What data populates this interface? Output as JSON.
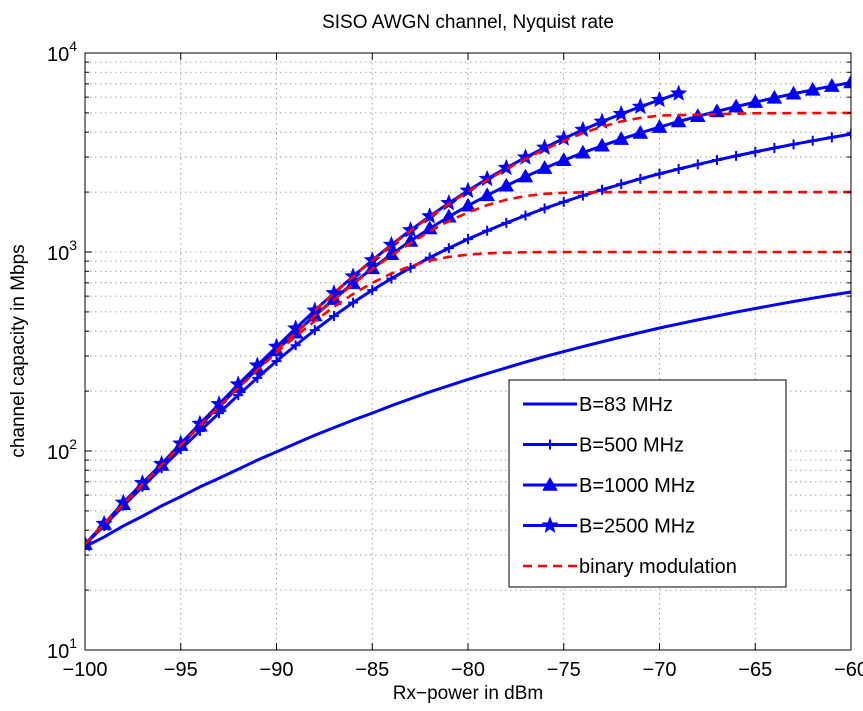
{
  "chart_data": {
    "type": "line",
    "title": "SISO AWGN channel, Nyquist rate",
    "xlabel": "Rx−power in dBm",
    "ylabel": "channel capacity in Mbps",
    "xlim": [
      -100,
      -60
    ],
    "ylim": [
      10,
      10000
    ],
    "y_scale": "log",
    "grid": true,
    "legend_position": "lower-right",
    "x_ticks": [
      -100,
      -95,
      -90,
      -85,
      -80,
      -75,
      -70,
      -65,
      -60
    ],
    "x_tick_labels": [
      "−100",
      "−95",
      "−90",
      "−85",
      "−80",
      "−75",
      "−70",
      "−65",
      "−60"
    ],
    "y_ticks": [
      {
        "value": 10,
        "base": "10",
        "exp": "1"
      },
      {
        "value": 100,
        "base": "10",
        "exp": "2"
      },
      {
        "value": 1000,
        "base": "10",
        "exp": "3"
      },
      {
        "value": 10000,
        "base": "10",
        "exp": "4"
      }
    ],
    "series": [
      {
        "name": "B=83 MHz",
        "color": "#0000ff",
        "style": "solid",
        "marker": "none",
        "x": [
          -100,
          -99,
          -98,
          -97,
          -96,
          -95,
          -94,
          -93,
          -92,
          -91,
          -90,
          -89,
          -88,
          -87,
          -86,
          -85,
          -84,
          -83,
          -82,
          -81,
          -80,
          -79,
          -78,
          -77,
          -76,
          -75,
          -74,
          -73,
          -72,
          -71,
          -70,
          -69,
          -68,
          -67,
          -66,
          -65,
          -64,
          -63,
          -62,
          -61,
          -60
        ],
        "y": [
          33,
          37,
          42,
          47,
          53,
          59,
          66,
          73,
          81,
          90,
          99,
          109,
          120,
          131,
          143,
          155,
          169,
          183,
          198,
          213,
          229,
          245,
          262,
          280,
          298,
          316,
          335,
          354,
          374,
          394,
          415,
          435,
          456,
          477,
          499,
          520,
          542,
          564,
          586,
          608,
          630
        ]
      },
      {
        "name": "B=500 MHz",
        "color": "#0000ff",
        "style": "solid",
        "marker": "plus",
        "x": [
          -100,
          -99,
          -98,
          -97,
          -96,
          -95,
          -94,
          -93,
          -92,
          -91,
          -90,
          -89,
          -88,
          -87,
          -86,
          -85,
          -84,
          -83,
          -82,
          -81,
          -80,
          -79,
          -78,
          -77,
          -76,
          -75,
          -74,
          -73,
          -72,
          -71,
          -70,
          -69,
          -68,
          -67,
          -66,
          -65,
          -64,
          -63,
          -62,
          -61,
          -60
        ],
        "y": [
          34,
          42,
          53,
          66,
          82,
          102,
          126,
          155,
          191,
          233,
          283,
          340,
          405,
          477,
          557,
          643,
          735,
          833,
          937,
          1046,
          1160,
          1278,
          1400,
          1526,
          1655,
          1786,
          1920,
          2056,
          2193,
          2332,
          2472,
          2613,
          2755,
          2898,
          3042,
          3186,
          3331,
          3476,
          3621,
          3767,
          3913
        ]
      },
      {
        "name": "B=1000 MHz",
        "color": "#0000ff",
        "style": "solid",
        "marker": "triangle",
        "x": [
          -100,
          -99,
          -98,
          -97,
          -96,
          -95,
          -94,
          -93,
          -92,
          -91,
          -90,
          -89,
          -88,
          -87,
          -86,
          -85,
          -84,
          -83,
          -82,
          -81,
          -80,
          -79,
          -78,
          -77,
          -76,
          -75,
          -74,
          -73,
          -72,
          -71,
          -70,
          -69,
          -68,
          -67,
          -66,
          -65,
          -64,
          -63,
          -62,
          -61,
          -60
        ],
        "y": [
          34,
          43,
          54,
          68,
          85,
          107,
          134,
          168,
          209,
          259,
          320,
          393,
          479,
          580,
          696,
          827,
          974,
          1136,
          1313,
          1504,
          1708,
          1925,
          2153,
          2391,
          2638,
          2892,
          3153,
          3419,
          3690,
          3965,
          4243,
          4524,
          4807,
          5091,
          5377,
          5664,
          5952,
          6241,
          6530,
          6820,
          7110
        ]
      },
      {
        "name": "B=2500 MHz",
        "color": "#0000ff",
        "style": "solid",
        "marker": "star",
        "x": [
          -100,
          -99,
          -98,
          -97,
          -96,
          -95,
          -94,
          -93,
          -92,
          -91,
          -90,
          -89,
          -88,
          -87,
          -86,
          -85,
          -84,
          -83,
          -82,
          -81,
          -80,
          -79,
          -78,
          -77,
          -76,
          -75,
          -74,
          -73,
          -72,
          -71,
          -70,
          -69
        ],
        "y": [
          34,
          43,
          55,
          69,
          86,
          109,
          137,
          172,
          216,
          269,
          334,
          413,
          508,
          621,
          754,
          909,
          1086,
          1287,
          1512,
          1761,
          2034,
          2330,
          2648,
          2986,
          3344,
          3719,
          4111,
          4517,
          4937,
          5368,
          5810,
          6260
        ]
      },
      {
        "name": "binary modulation",
        "color": "#ff0000",
        "style": "dashed",
        "marker": "none",
        "x": [
          -100,
          -99,
          -98,
          -97,
          -96,
          -95,
          -94,
          -93,
          -92,
          -91,
          -90,
          -89,
          -88,
          -87,
          -86,
          -85,
          -84,
          -83,
          -82,
          -81,
          -80,
          -79,
          -78,
          -77,
          -76,
          -75,
          -74,
          -73,
          -72,
          -71,
          -70,
          -68,
          -66,
          -64,
          -62,
          -60
        ],
        "y": [
          34,
          43,
          54,
          68,
          85,
          107,
          134,
          167,
          207,
          255,
          312,
          377,
          450,
          530,
          615,
          700,
          780,
          850,
          905,
          945,
          970,
          985,
          993,
          997,
          999,
          1000,
          1000,
          1000,
          1000,
          1000,
          1000,
          1000,
          1000,
          1000,
          1000,
          1000
        ],
        "extra_curves": [
          {
            "x": [
              -90,
              -89,
              -88,
              -87,
              -86,
              -85,
              -84,
              -83,
              -82,
              -81,
              -80,
              -79,
              -78,
              -77,
              -76,
              -75,
              -74,
              -72,
              -70,
              -65,
              -60
            ],
            "y": [
              320,
              393,
              478,
              575,
              690,
              820,
              960,
              1110,
              1270,
              1430,
              1580,
              1720,
              1830,
              1910,
              1960,
              1985,
              1995,
              2000,
              2000,
              2000,
              2000
            ]
          },
          {
            "x": [
              -88,
              -87,
              -86,
              -85,
              -84,
              -83,
              -82,
              -81,
              -80,
              -79,
              -78,
              -77,
              -76,
              -75,
              -74,
              -73,
              -72,
              -71,
              -70,
              -65,
              -60
            ],
            "y": [
              508,
              620,
              753,
              905,
              1080,
              1280,
              1500,
              1745,
              2010,
              2300,
              2610,
              2940,
              3280,
              3620,
              3960,
              4260,
              4530,
              4720,
              4850,
              4980,
              5000
            ]
          }
        ]
      }
    ]
  }
}
